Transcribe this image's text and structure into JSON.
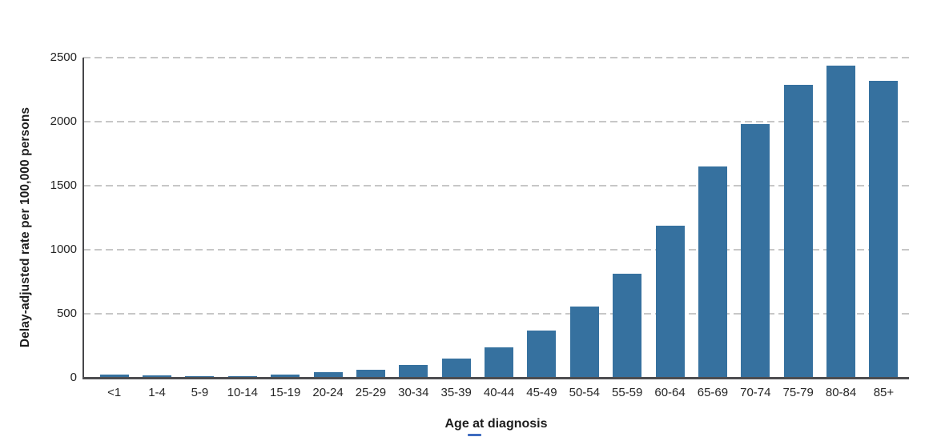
{
  "chart_data": {
    "type": "bar",
    "title": "",
    "xlabel": "Age at diagnosis",
    "ylabel": "Delay-adjusted rate per 100,000 persons",
    "categories": [
      "<1",
      "1-4",
      "5-9",
      "10-14",
      "15-19",
      "20-24",
      "25-29",
      "30-34",
      "35-39",
      "40-44",
      "45-49",
      "50-54",
      "55-59",
      "60-64",
      "65-69",
      "70-74",
      "75-79",
      "80-84",
      "85+"
    ],
    "values": [
      25,
      21,
      13,
      15,
      25,
      41,
      65,
      103,
      150,
      240,
      370,
      555,
      810,
      1185,
      1650,
      1980,
      2290,
      2440,
      2320
    ],
    "ylim": [
      0,
      2500
    ],
    "yticks": [
      0,
      500,
      1000,
      1500,
      2000,
      2500
    ],
    "ytick_labels": [
      "0",
      "500",
      "1000",
      "1500",
      "2000",
      "2500"
    ],
    "grid": "horizontal-dashed",
    "legend": "none",
    "colors": {
      "bar": "#36719f",
      "gridline": "#c7c7c7",
      "axis": "#4d4d50",
      "text": "#1d1d1d",
      "underline_marker": "#3e6cc0"
    }
  }
}
